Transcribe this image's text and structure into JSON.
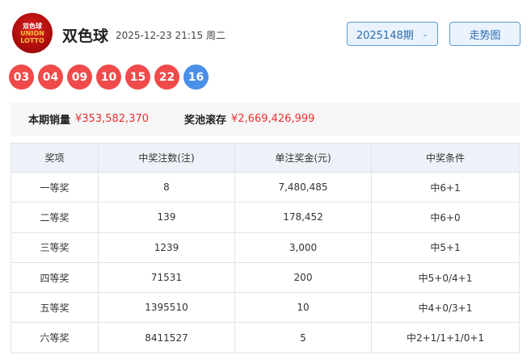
{
  "header": {
    "logo_text": [
      "双色球",
      "UNION",
      "LOTTO"
    ],
    "title": "双色球",
    "datetime": "2025-12-23 21:15 周二",
    "issue": "2025148期",
    "trend_button": "走势图"
  },
  "balls": {
    "red": [
      "03",
      "04",
      "09",
      "10",
      "15",
      "22"
    ],
    "blue": [
      "16"
    ],
    "colors": {
      "red": "#f04a4a",
      "blue": "#4a90e8"
    }
  },
  "sales": {
    "sales_label": "本期销量",
    "sales_value": "¥353,582,370",
    "pool_label": "奖池滚存",
    "pool_value": "¥2,669,426,999"
  },
  "table": {
    "headers": [
      "奖项",
      "中奖注数(注)",
      "单注奖金(元)",
      "中奖条件"
    ],
    "rows": [
      [
        "一等奖",
        "8",
        "7,480,485",
        "中6+1"
      ],
      [
        "二等奖",
        "139",
        "178,452",
        "中6+0"
      ],
      [
        "三等奖",
        "1239",
        "3,000",
        "中5+1"
      ],
      [
        "四等奖",
        "71531",
        "200",
        "中5+0/4+1"
      ],
      [
        "五等奖",
        "1395510",
        "10",
        "中4+0/3+1"
      ],
      [
        "六等奖",
        "8411527",
        "5",
        "中2+1/1+1/0+1"
      ]
    ]
  }
}
